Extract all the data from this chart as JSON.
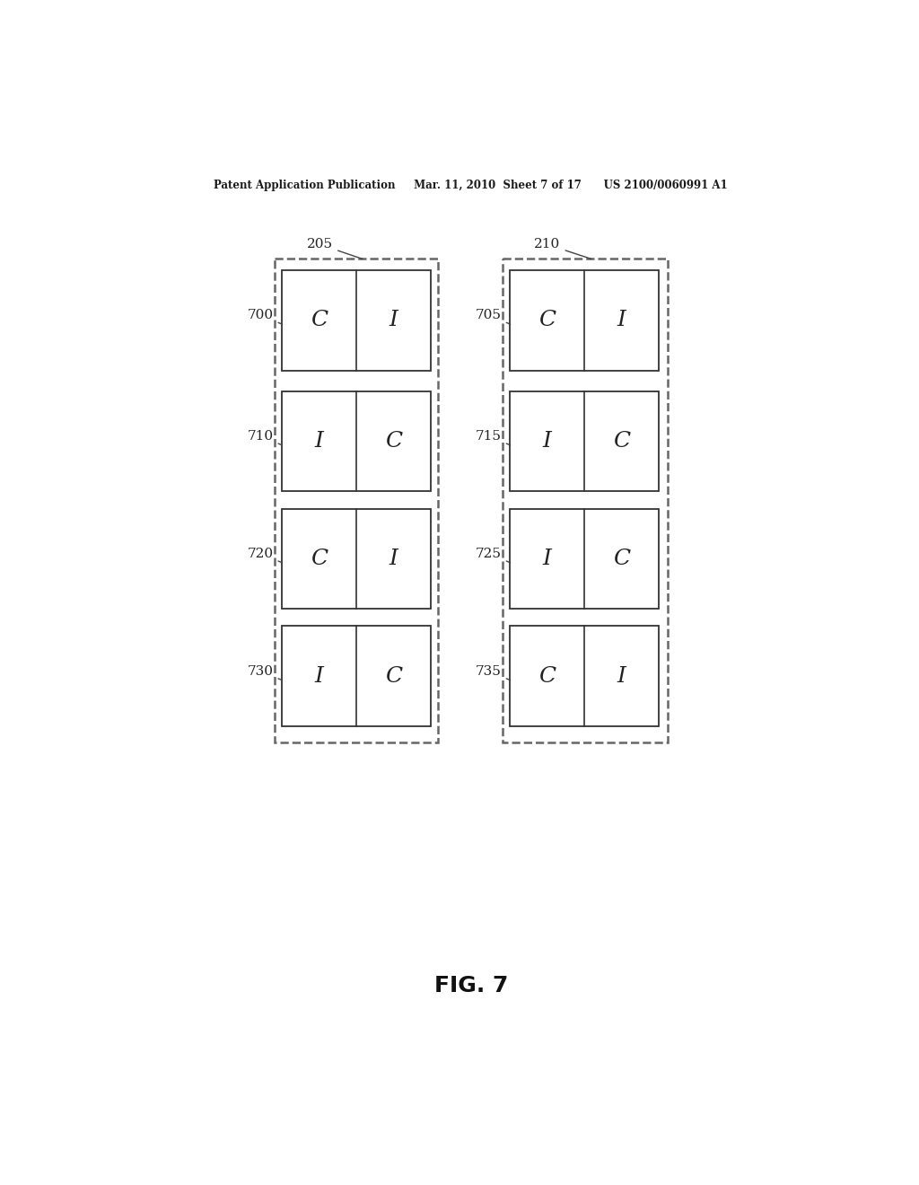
{
  "header_left": "Patent Application Publication",
  "header_mid": "Mar. 11, 2010  Sheet 7 of 17",
  "header_right": "US 2100/0060991 A1",
  "header_text": "Patent Application Publication     Mar. 11, 2010  Sheet 7 of 17      US 2100/0060991 A1",
  "fig_label": "FIG. 7",
  "bg_color": "#ffffff",
  "text_color": "#1a1a1a",
  "left_boxes": [
    {
      "label": "700",
      "cells": [
        "C",
        "I"
      ]
    },
    {
      "label": "710",
      "cells": [
        "I",
        "C"
      ]
    },
    {
      "label": "720",
      "cells": [
        "C",
        "I"
      ]
    },
    {
      "label": "730",
      "cells": [
        "I",
        "C"
      ]
    }
  ],
  "right_boxes": [
    {
      "label": "705",
      "cells": [
        "C",
        "I"
      ]
    },
    {
      "label": "715",
      "cells": [
        "I",
        "C"
      ]
    },
    {
      "label": "725",
      "cells": [
        "I",
        "C"
      ]
    },
    {
      "label": "735",
      "cells": [
        "C",
        "I"
      ]
    }
  ],
  "cell_font_size": 18,
  "label_font_size": 11,
  "header_font_size": 8.5,
  "fig_label_font_size": 18
}
